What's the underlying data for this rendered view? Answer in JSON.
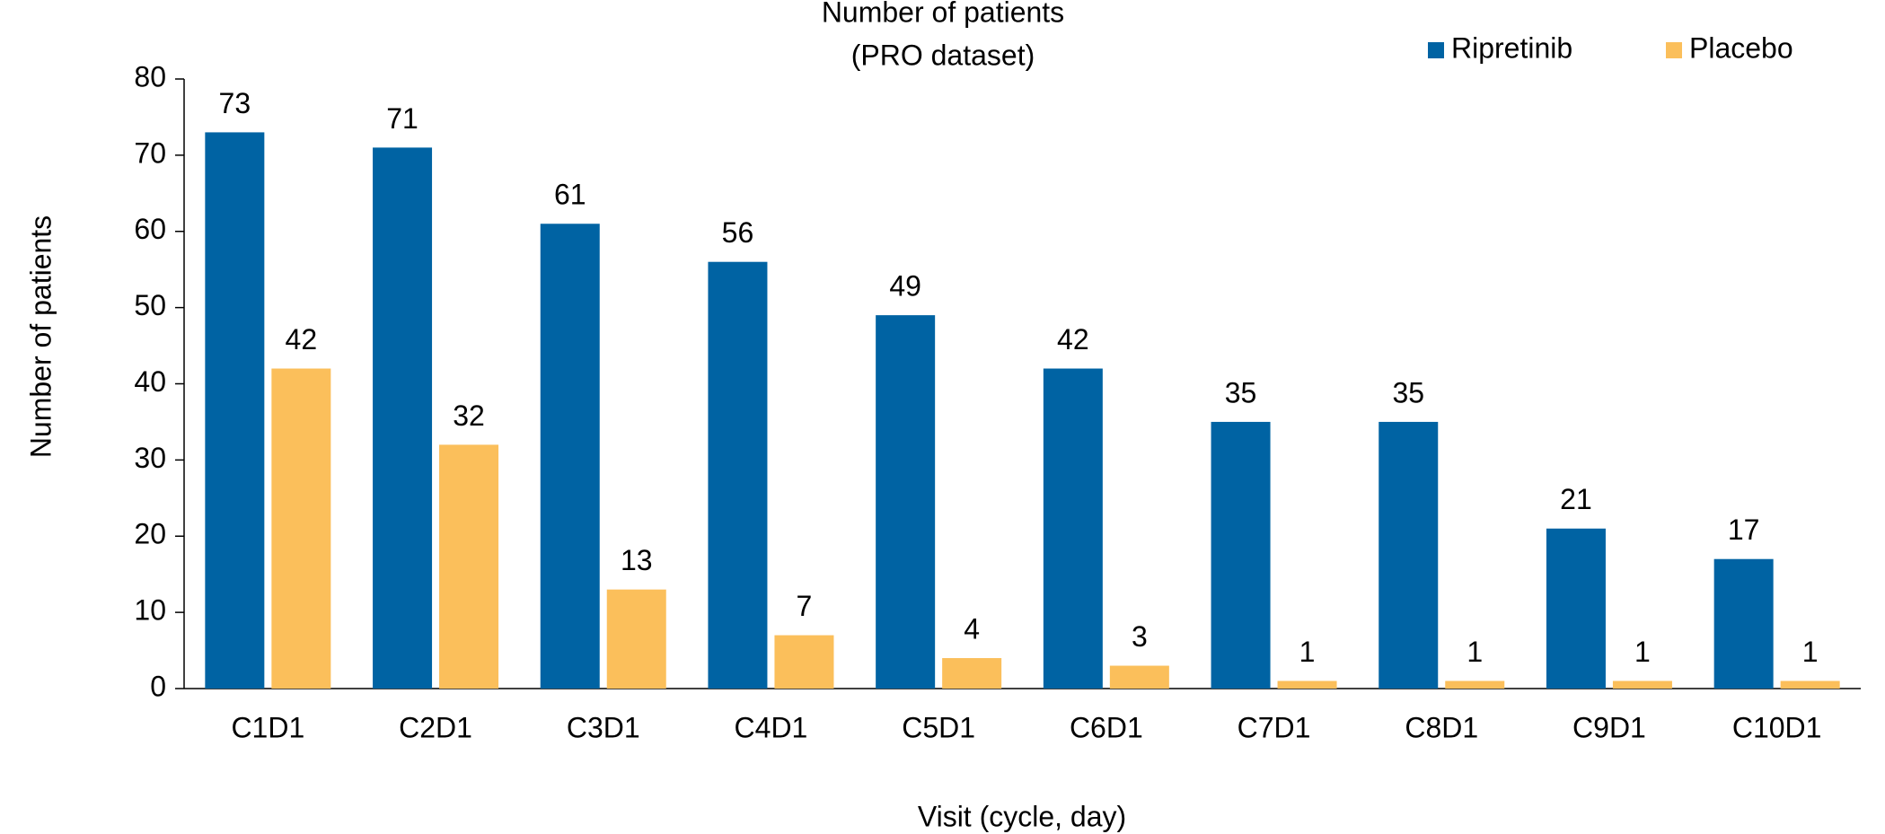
{
  "chart_data": {
    "type": "bar",
    "title": "Number of patients",
    "subtitle": "(PRO dataset)",
    "x_label": "Visit (cycle, day)",
    "y_label": "Number of patients",
    "categories": [
      "C1D1",
      "C2D1",
      "C3D1",
      "C4D1",
      "C5D1",
      "C6D1",
      "C7D1",
      "C8D1",
      "C9D1",
      "C10D1"
    ],
    "series": [
      {
        "name": "Ripretinib",
        "color": "#0063a3",
        "values": [
          73,
          71,
          61,
          56,
          49,
          42,
          35,
          35,
          21,
          17
        ]
      },
      {
        "name": "Placebo",
        "color": "#fbbf5b",
        "values": [
          42,
          32,
          13,
          7,
          4,
          3,
          1,
          1,
          1,
          1
        ]
      }
    ],
    "ylim": [
      0,
      80
    ],
    "yticks": [
      0,
      10,
      20,
      30,
      40,
      50,
      60,
      70,
      80
    ],
    "grid": false,
    "legend": "top-right"
  }
}
